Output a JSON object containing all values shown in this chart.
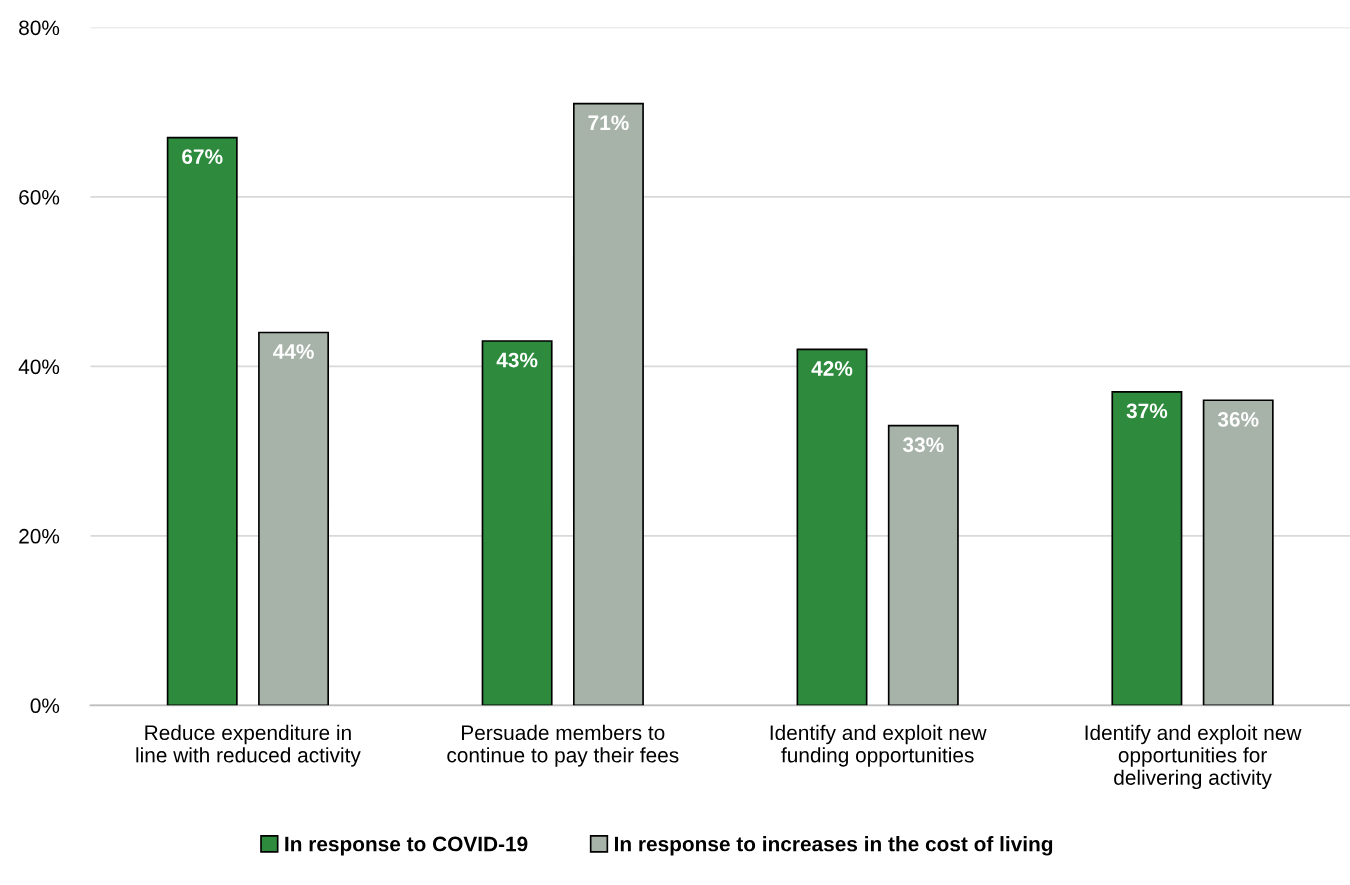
{
  "chart_data": {
    "type": "bar",
    "categories": [
      "Reduce expenditure in\nline with reduced activity",
      "Persuade members to\ncontinue to pay their fees",
      "Identify and exploit new\nfunding opportunities",
      "Identify and exploit new\nopportunities for\ndelivering activity"
    ],
    "series": [
      {
        "name": "In response to COVID-19",
        "color": "#2e8b3e",
        "values": [
          67,
          43,
          42,
          37
        ],
        "value_labels": [
          "67%",
          "43%",
          "42%",
          "37%"
        ]
      },
      {
        "name": "In response to increases in the cost of living",
        "color": "#a7b3a9",
        "values": [
          44,
          71,
          33,
          36
        ],
        "value_labels": [
          "44%",
          "71%",
          "33%",
          "36%"
        ]
      }
    ],
    "ylim": [
      0,
      80
    ],
    "yticks": [
      {
        "value": 0,
        "label": "0%"
      },
      {
        "value": 20,
        "label": "20%"
      },
      {
        "value": 40,
        "label": "40%"
      },
      {
        "value": 60,
        "label": "60%"
      },
      {
        "value": 80,
        "label": "80%"
      }
    ],
    "grid": "y",
    "legend": "bottom"
  }
}
